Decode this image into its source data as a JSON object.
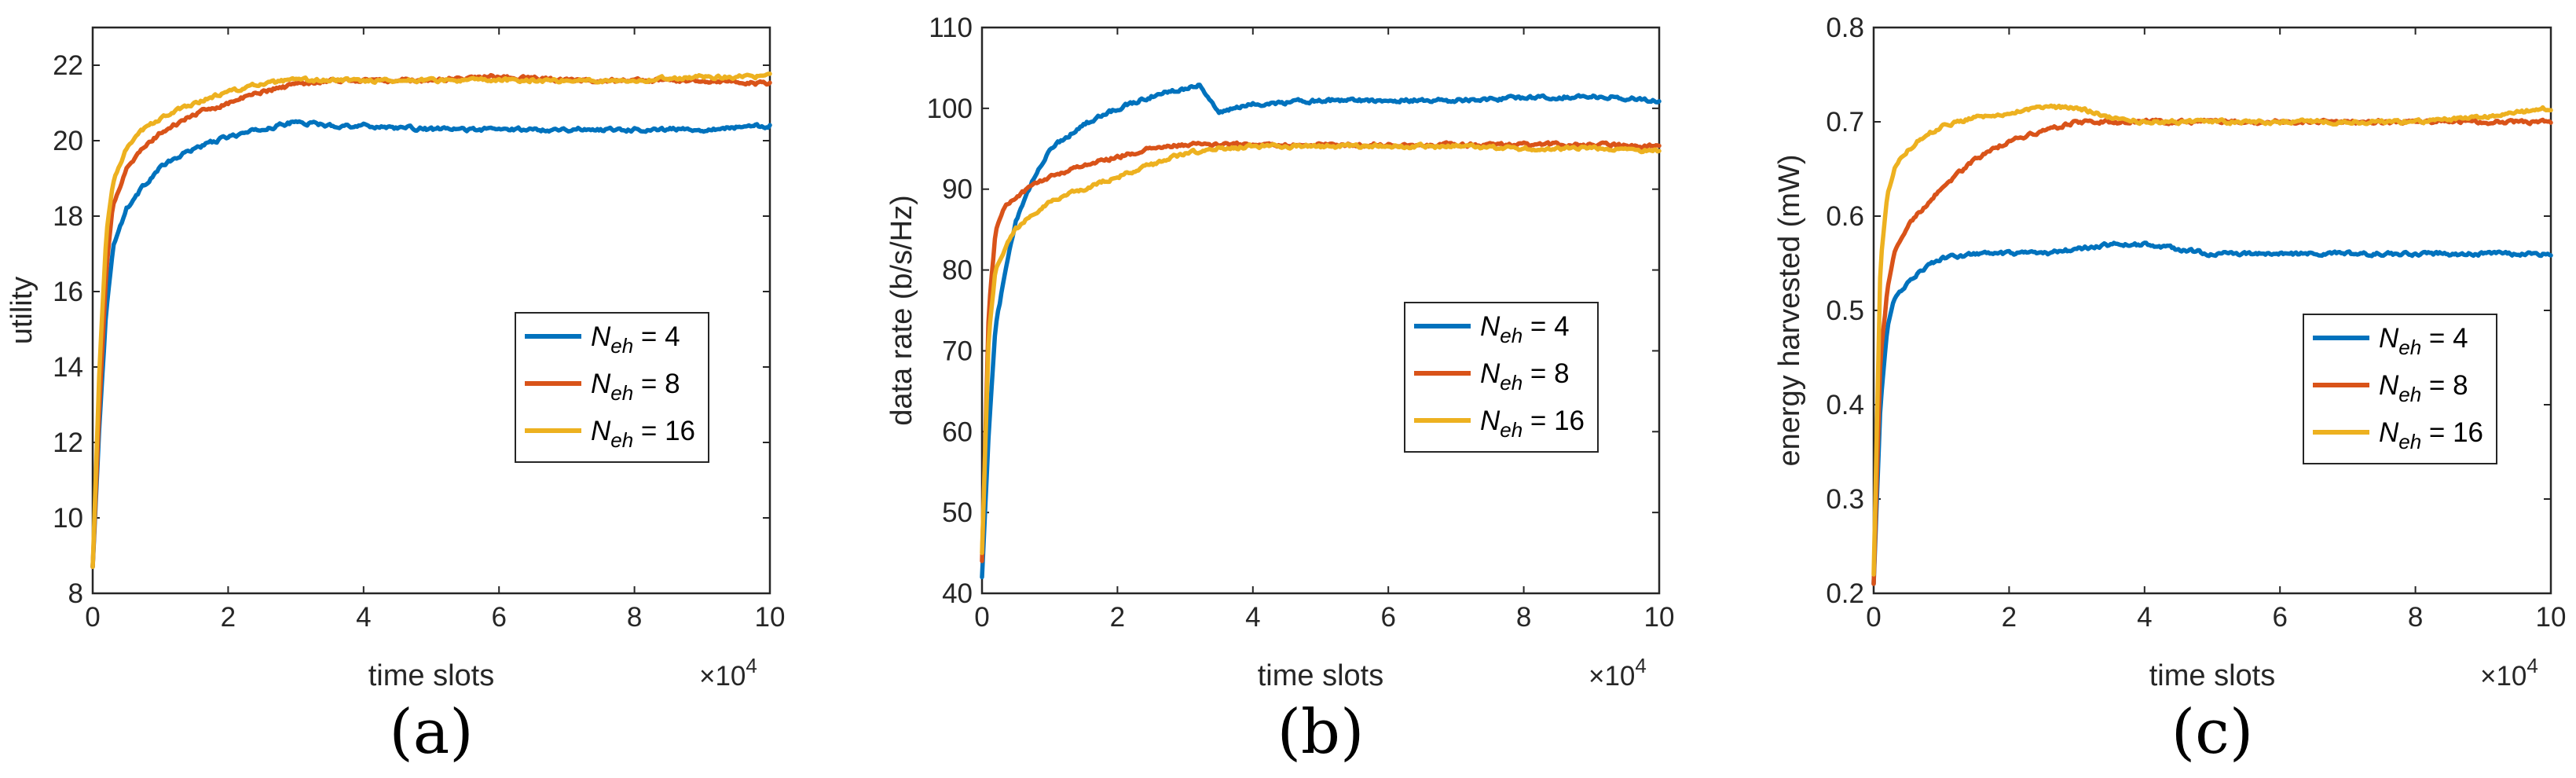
{
  "chart_data": [
    {
      "type": "line",
      "panel_label": "(a)",
      "xlabel": "time slots",
      "ylabel": "utility",
      "xlim": [
        0,
        10
      ],
      "ylim": [
        8,
        23
      ],
      "x_exponent_label": "×10",
      "x_exponent_power": "4",
      "xticks": [
        "0",
        "2",
        "4",
        "6",
        "8",
        "10"
      ],
      "yticks": [
        "8",
        "10",
        "12",
        "14",
        "16",
        "18",
        "20",
        "22"
      ],
      "legend_position": "center-right",
      "series": [
        {
          "name_main": "N",
          "name_sub": "eh",
          "name_suffix": " = 4",
          "color": "#0072BD",
          "x": [
            0,
            0.1,
            0.2,
            0.3,
            0.5,
            0.75,
            1,
            1.5,
            2,
            2.5,
            3,
            3.5,
            4,
            5,
            6,
            7,
            8,
            9,
            10
          ],
          "values": [
            8.7,
            12.5,
            15.5,
            17.2,
            18.2,
            18.8,
            19.3,
            19.8,
            20.1,
            20.3,
            20.5,
            20.4,
            20.4,
            20.3,
            20.3,
            20.3,
            20.3,
            20.3,
            20.4
          ]
        },
        {
          "name_main": "N",
          "name_sub": "eh",
          "name_suffix": " = 8",
          "color": "#D95319",
          "x": [
            0,
            0.1,
            0.2,
            0.3,
            0.5,
            0.75,
            1,
            1.5,
            2,
            2.5,
            3,
            3.5,
            4,
            5,
            6,
            7,
            8,
            9,
            10
          ],
          "values": [
            8.7,
            13.0,
            16.5,
            18.3,
            19.3,
            19.8,
            20.2,
            20.7,
            21.0,
            21.3,
            21.5,
            21.6,
            21.6,
            21.6,
            21.7,
            21.6,
            21.6,
            21.6,
            21.5
          ]
        },
        {
          "name_main": "N",
          "name_sub": "eh",
          "name_suffix": " = 16",
          "color": "#EDB120",
          "x": [
            0,
            0.1,
            0.2,
            0.3,
            0.5,
            0.75,
            1,
            1.5,
            2,
            2.5,
            3,
            3.5,
            4,
            5,
            6,
            7,
            8,
            9,
            10
          ],
          "values": [
            8.7,
            14.0,
            17.5,
            18.9,
            19.8,
            20.3,
            20.6,
            21.0,
            21.3,
            21.5,
            21.6,
            21.6,
            21.6,
            21.6,
            21.6,
            21.6,
            21.6,
            21.7,
            21.7
          ]
        }
      ]
    },
    {
      "type": "line",
      "panel_label": "(b)",
      "xlabel": "time slots",
      "ylabel": "data rate (b/s/Hz)",
      "xlim": [
        0,
        10
      ],
      "ylim": [
        40,
        110
      ],
      "x_exponent_label": "×10",
      "x_exponent_power": "4",
      "xticks": [
        "0",
        "2",
        "4",
        "6",
        "8",
        "10"
      ],
      "yticks": [
        "40",
        "50",
        "60",
        "70",
        "80",
        "90",
        "100",
        "110"
      ],
      "legend_position": "center-right",
      "series": [
        {
          "name_main": "N",
          "name_sub": "eh",
          "name_suffix": " = 4",
          "color": "#0072BD",
          "x": [
            0,
            0.1,
            0.2,
            0.35,
            0.5,
            0.75,
            1,
            1.5,
            2,
            2.5,
            3,
            3.2,
            3.5,
            4,
            5,
            6,
            7,
            8,
            9,
            10
          ],
          "values": [
            42,
            60,
            73,
            80,
            86,
            91,
            95,
            98,
            100,
            101.5,
            102.5,
            103,
            99.5,
            100.5,
            101,
            101,
            101,
            101.3,
            101.5,
            101
          ]
        },
        {
          "name_main": "N",
          "name_sub": "eh",
          "name_suffix": " = 8",
          "color": "#D95319",
          "x": [
            0,
            0.1,
            0.2,
            0.35,
            0.5,
            0.75,
            1,
            1.5,
            2,
            2.5,
            3,
            3.5,
            4,
            5,
            6,
            7,
            8,
            9,
            10
          ],
          "values": [
            44,
            75,
            85,
            88,
            89,
            90.5,
            91.5,
            93,
            94,
            95,
            95.5,
            95.5,
            95.5,
            95.5,
            95.5,
            95.5,
            95.5,
            95.5,
            95.3
          ]
        },
        {
          "name_main": "N",
          "name_sub": "eh",
          "name_suffix": " = 16",
          "color": "#EDB120",
          "x": [
            0,
            0.1,
            0.2,
            0.35,
            0.5,
            0.75,
            1,
            1.5,
            2,
            2.5,
            3,
            3.5,
            4,
            5,
            6,
            7,
            8,
            9,
            10
          ],
          "values": [
            45,
            72,
            80,
            83,
            85,
            87,
            88.5,
            90,
            91.5,
            93,
            94.5,
            95,
            95.3,
            95.3,
            95.3,
            95.3,
            95,
            95,
            94.8
          ]
        }
      ]
    },
    {
      "type": "line",
      "panel_label": "(c)",
      "xlabel": "time slots",
      "ylabel": "energy harvested (mW)",
      "xlim": [
        0,
        10
      ],
      "ylim": [
        0.2,
        0.8
      ],
      "x_exponent_label": "×10",
      "x_exponent_power": "4",
      "xticks": [
        "0",
        "2",
        "4",
        "6",
        "8",
        "10"
      ],
      "yticks": [
        "0.2",
        "0.3",
        "0.4",
        "0.5",
        "0.6",
        "0.7",
        "0.8"
      ],
      "legend_position": "center-right",
      "series": [
        {
          "name_main": "N",
          "name_sub": "eh",
          "name_suffix": " = 4",
          "color": "#0072BD",
          "x": [
            0,
            0.1,
            0.2,
            0.3,
            0.5,
            0.75,
            1,
            1.5,
            2,
            2.5,
            3,
            3.5,
            4,
            5,
            6,
            7,
            8,
            9,
            10
          ],
          "values": [
            0.21,
            0.4,
            0.48,
            0.51,
            0.53,
            0.545,
            0.555,
            0.56,
            0.56,
            0.56,
            0.565,
            0.57,
            0.57,
            0.56,
            0.56,
            0.56,
            0.56,
            0.56,
            0.56
          ]
        },
        {
          "name_main": "N",
          "name_sub": "eh",
          "name_suffix": " = 8",
          "color": "#D95319",
          "x": [
            0,
            0.1,
            0.2,
            0.3,
            0.5,
            0.75,
            1,
            1.5,
            2,
            2.5,
            3,
            3.5,
            4,
            5,
            6,
            7,
            8,
            9,
            10
          ],
          "values": [
            0.21,
            0.45,
            0.52,
            0.56,
            0.59,
            0.61,
            0.63,
            0.66,
            0.68,
            0.69,
            0.7,
            0.7,
            0.7,
            0.7,
            0.7,
            0.7,
            0.7,
            0.7,
            0.7
          ]
        },
        {
          "name_main": "N",
          "name_sub": "eh",
          "name_suffix": " = 16",
          "color": "#EDB120",
          "x": [
            0,
            0.1,
            0.2,
            0.3,
            0.5,
            0.75,
            1,
            1.5,
            2,
            2.5,
            3,
            3.5,
            4,
            5,
            6,
            7,
            8,
            9,
            10
          ],
          "values": [
            0.22,
            0.55,
            0.62,
            0.65,
            0.67,
            0.685,
            0.695,
            0.705,
            0.71,
            0.715,
            0.715,
            0.705,
            0.7,
            0.7,
            0.7,
            0.7,
            0.7,
            0.705,
            0.715
          ]
        }
      ]
    }
  ]
}
